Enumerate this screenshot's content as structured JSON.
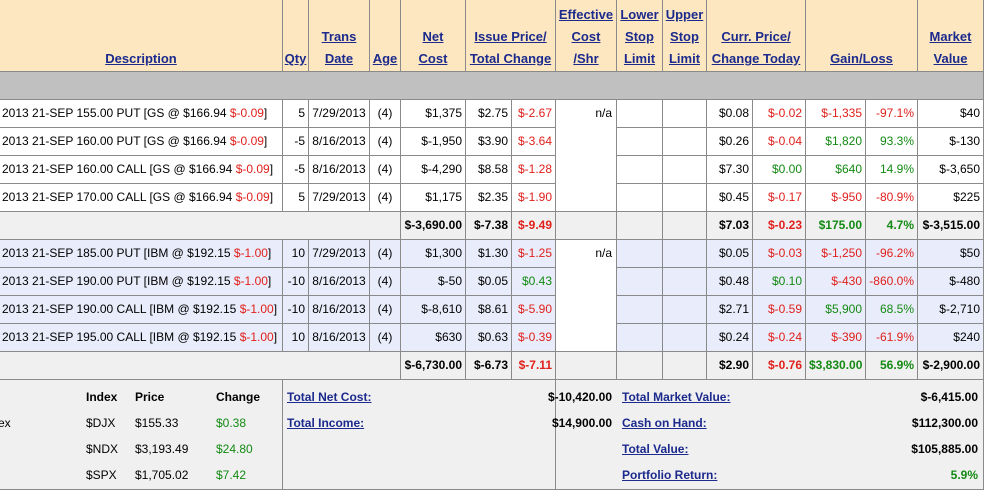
{
  "header": {
    "columns": [
      {
        "lines": [
          "Description"
        ]
      },
      {
        "lines": [
          "Qty"
        ]
      },
      {
        "lines": [
          "Trans",
          "Date"
        ]
      },
      {
        "lines": [
          "Age"
        ]
      },
      {
        "lines": [
          "Net",
          "Cost"
        ]
      },
      {
        "lines": [
          "Issue Price/",
          "Total Change"
        ]
      },
      {
        "lines": [
          "Effective",
          "Cost",
          "/Shr"
        ]
      },
      {
        "lines": [
          "Lower",
          "Stop",
          "Limit"
        ]
      },
      {
        "lines": [
          "Upper",
          "Stop",
          "Limit"
        ]
      },
      {
        "lines": [
          "Curr. Price/",
          "Change Today"
        ]
      },
      {
        "lines": [
          "Gain/Loss"
        ]
      },
      {
        "lines": [
          "Market",
          "Value"
        ]
      }
    ]
  },
  "groups": [
    {
      "effective_cost": "n/a",
      "rows": [
        {
          "description": [
            "2013 21-SEP 155.00 PUT [GS @ $166.94 ",
            "$-0.09",
            "]"
          ],
          "cells": [
            "5",
            "7/29/2013",
            "(4)",
            "$1,375",
            "$2.75",
            "$-2.67",
            "$0.08",
            "$-0.02",
            "$-1,335",
            "-97.1%",
            "$40"
          ]
        },
        {
          "description": [
            "2013 21-SEP 160.00 PUT [GS @ $166.94 ",
            "$-0.09",
            "]"
          ],
          "cells": [
            "-5",
            "8/16/2013",
            "(4)",
            "$-1,950",
            "$3.90",
            "$-3.64",
            "$0.26",
            "$-0.04",
            "$1,820",
            "93.3%",
            "$-130"
          ]
        },
        {
          "description": [
            "2013 21-SEP 160.00 CALL [GS @ $166.94 ",
            "$-0.09",
            "]"
          ],
          "cells": [
            "-5",
            "8/16/2013",
            "(4)",
            "$-4,290",
            "$8.58",
            "$-1.28",
            "$7.30",
            "$0.00",
            "$640",
            "14.9%",
            "$-3,650"
          ]
        },
        {
          "description": [
            "2013 21-SEP 170.00 CALL [GS @ $166.94 ",
            "$-0.09",
            "]"
          ],
          "cells": [
            "5",
            "7/29/2013",
            "(4)",
            "$1,175",
            "$2.35",
            "$-1.90",
            "$0.45",
            "$-0.17",
            "$-950",
            "-80.9%",
            "$225"
          ]
        }
      ],
      "subtotal": [
        "$-3,690.00",
        "$-7.38",
        "$-9.49",
        "$7.03",
        "$-0.23",
        "$175.00",
        "4.7%",
        "$-3,515.00"
      ]
    },
    {
      "effective_cost": "n/a",
      "rows": [
        {
          "description": [
            "2013 21-SEP 185.00 PUT [IBM @ $192.15 ",
            "$-1.00",
            "]"
          ],
          "cells": [
            "10",
            "7/29/2013",
            "(4)",
            "$1,300",
            "$1.30",
            "$-1.25",
            "$0.05",
            "$-0.03",
            "$-1,250",
            "-96.2%",
            "$50"
          ]
        },
        {
          "description": [
            "2013 21-SEP 190.00 PUT [IBM @ $192.15 ",
            "$-1.00",
            "]"
          ],
          "cells": [
            "-10",
            "8/16/2013",
            "(4)",
            "$-50",
            "$0.05",
            "$0.43",
            "$0.48",
            "$0.10",
            "$-430",
            "-860.0%",
            "$-480"
          ]
        },
        {
          "description": [
            "2013 21-SEP 190.00 CALL [IBM @ $192.15 ",
            "$-1.00",
            "]"
          ],
          "cells": [
            "-10",
            "8/16/2013",
            "(4)",
            "$-8,610",
            "$8.61",
            "$-5.90",
            "$2.71",
            "$-0.59",
            "$5,900",
            "68.5%",
            "$-2,710"
          ]
        },
        {
          "description": [
            "2013 21-SEP 195.00 CALL [IBM @ $192.15 ",
            "$-1.00",
            "]"
          ],
          "cells": [
            "10",
            "8/16/2013",
            "(4)",
            "$630",
            "$0.63",
            "$-0.39",
            "$0.24",
            "$-0.24",
            "$-390",
            "-61.9%",
            "$240"
          ]
        }
      ],
      "subtotal": [
        "$-6,730.00",
        "$-6.73",
        "$-7.11",
        "$2.90",
        "$-0.76",
        "$3,830.00",
        "56.9%",
        "$-2,900.00"
      ]
    }
  ],
  "indices": {
    "truncated_label": "ex",
    "header": [
      "Index",
      "Price",
      "Change"
    ],
    "rows": [
      [
        "$DJX",
        "$155.33",
        "$0.38"
      ],
      [
        "$NDX",
        "$3,193.49",
        "$24.80"
      ],
      [
        "$SPX",
        "$1,705.02",
        "$7.42"
      ]
    ]
  },
  "summary": {
    "left": [
      {
        "label": "Total Net Cost:",
        "value": "$-10,420.00"
      },
      {
        "label": "Total Income:",
        "value": "$14,900.00"
      }
    ],
    "right": [
      {
        "label": "Total Market Value:",
        "value": "$-6,415.00"
      },
      {
        "label": "Cash on Hand:",
        "value": "$112,300.00"
      },
      {
        "label": "Total Value:",
        "value": "$105,885.00"
      },
      {
        "label": "Portfolio Return:",
        "value": "5.9%"
      }
    ]
  }
}
